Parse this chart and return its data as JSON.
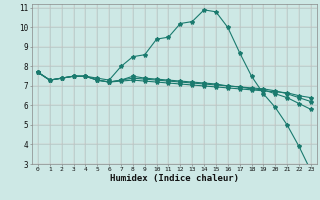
{
  "title": "",
  "xlabel": "Humidex (Indice chaleur)",
  "bg_color": "#cde8e5",
  "grid_color": "#b0d0ce",
  "line_color": "#1a7a6e",
  "xlim": [
    -0.5,
    23.5
  ],
  "ylim": [
    3,
    11.2
  ],
  "xticks": [
    0,
    1,
    2,
    3,
    4,
    5,
    6,
    7,
    8,
    9,
    10,
    11,
    12,
    13,
    14,
    15,
    16,
    17,
    18,
    19,
    20,
    21,
    22,
    23
  ],
  "yticks": [
    3,
    4,
    5,
    6,
    7,
    8,
    9,
    10,
    11
  ],
  "lines": [
    {
      "x": [
        0,
        1,
        2,
        3,
        4,
        5,
        6,
        7,
        8,
        9,
        10,
        11,
        12,
        13,
        14,
        15,
        16,
        17,
        18,
        19,
        20,
        21,
        22,
        23
      ],
      "y": [
        7.7,
        7.3,
        7.4,
        7.5,
        7.5,
        7.4,
        7.3,
        8.0,
        8.5,
        8.6,
        9.4,
        9.5,
        10.2,
        10.3,
        10.9,
        10.8,
        10.0,
        8.7,
        7.5,
        6.6,
        5.9,
        5.0,
        3.9,
        2.65
      ]
    },
    {
      "x": [
        0,
        1,
        2,
        3,
        4,
        5,
        6,
        7,
        8,
        9,
        10,
        11,
        12,
        13,
        14,
        15,
        16,
        17,
        18,
        19,
        20,
        21,
        22,
        23
      ],
      "y": [
        7.7,
        7.3,
        7.4,
        7.5,
        7.5,
        7.3,
        7.2,
        7.25,
        7.3,
        7.25,
        7.2,
        7.15,
        7.1,
        7.05,
        7.0,
        6.95,
        6.9,
        6.85,
        6.8,
        6.75,
        6.7,
        6.65,
        6.5,
        6.4
      ]
    },
    {
      "x": [
        0,
        1,
        2,
        3,
        4,
        5,
        6,
        7,
        8,
        9,
        10,
        11,
        12,
        13,
        14,
        15,
        16,
        17,
        18,
        19,
        20,
        21,
        22,
        23
      ],
      "y": [
        7.7,
        7.3,
        7.4,
        7.5,
        7.5,
        7.3,
        7.2,
        7.3,
        7.4,
        7.35,
        7.3,
        7.25,
        7.2,
        7.15,
        7.1,
        7.05,
        7.0,
        6.95,
        6.9,
        6.85,
        6.75,
        6.6,
        6.4,
        6.2
      ]
    },
    {
      "x": [
        0,
        1,
        2,
        3,
        4,
        5,
        6,
        7,
        8,
        9,
        10,
        11,
        12,
        13,
        14,
        15,
        16,
        17,
        18,
        19,
        20,
        21,
        22,
        23
      ],
      "y": [
        7.7,
        7.3,
        7.4,
        7.5,
        7.5,
        7.3,
        7.2,
        7.3,
        7.5,
        7.4,
        7.35,
        7.3,
        7.25,
        7.2,
        7.15,
        7.1,
        7.0,
        6.95,
        6.85,
        6.8,
        6.6,
        6.4,
        6.1,
        5.8
      ]
    }
  ]
}
